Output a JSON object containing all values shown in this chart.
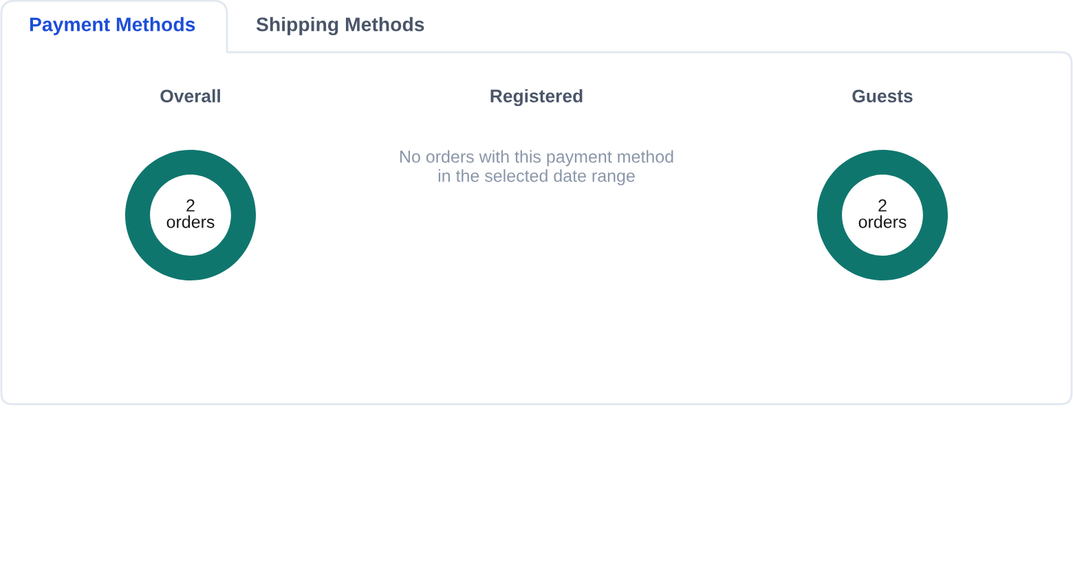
{
  "chart_data": [
    {
      "type": "other",
      "annotations": [
        "Payment Methods",
        "Shipping Methods"
      ]
    },
    {
      "type": "donut",
      "title": "Overall",
      "categories": [
        null
      ],
      "values": [
        2
      ],
      "colors": [
        "#0f766e"
      ],
      "data_labels": true,
      "annotations": [
        "orders"
      ]
    },
    {
      "type": "other",
      "title": "Registered",
      "annotations": [
        "No orders with this payment method\nin the selected date range"
      ]
    },
    {
      "type": "donut",
      "title": "Guests",
      "categories": [
        null
      ],
      "values": [
        2
      ],
      "colors": [
        "#0f766e"
      ],
      "data_labels": true,
      "annotations": [
        "orders"
      ]
    }
  ]
}
